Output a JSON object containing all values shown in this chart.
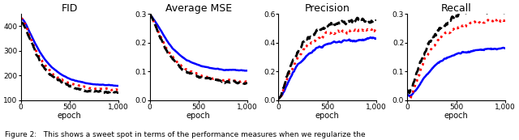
{
  "panels": [
    {
      "title": "FID",
      "xlim": [
        0,
        1000
      ],
      "ylim": [
        100,
        450
      ],
      "yticks": [
        100,
        200,
        300,
        400
      ],
      "xticks": [
        0,
        500,
        1000
      ],
      "xticklabels": [
        "0",
        "500",
        "1,000"
      ]
    },
    {
      "title": "Average MSE",
      "xlim": [
        0,
        1000
      ],
      "ylim": [
        0,
        0.3
      ],
      "yticks": [
        0,
        0.1,
        0.2,
        0.3
      ],
      "xticks": [
        0,
        500,
        1000
      ],
      "xticklabels": [
        "0",
        "500",
        "1,000"
      ]
    },
    {
      "title": "Precision",
      "xlim": [
        0,
        1000
      ],
      "ylim": [
        0,
        0.6
      ],
      "yticks": [
        0,
        0.2,
        0.4,
        0.6
      ],
      "xticks": [
        0,
        500,
        1000
      ],
      "xticklabels": [
        "0",
        "500",
        "1,000"
      ]
    },
    {
      "title": "Recall",
      "xlim": [
        0,
        1000
      ],
      "ylim": [
        0,
        0.3
      ],
      "yticks": [
        0,
        0.1,
        0.2,
        0.3
      ],
      "xticks": [
        0,
        500,
        1000
      ],
      "xticklabels": [
        "0",
        "500",
        "1,000"
      ]
    }
  ],
  "xlabel": "epoch",
  "caption": "Figure 2:   This shows a sweet spot in terms of the performance measures when we regularize the",
  "line_colors": {
    "blue": "#0000FF",
    "red": "#FF0000",
    "black": "#000000"
  },
  "line_styles": {
    "blue": "-",
    "red": ":",
    "black": "--"
  },
  "line_widths": {
    "blue": 1.8,
    "red": 2.0,
    "black": 2.0
  }
}
